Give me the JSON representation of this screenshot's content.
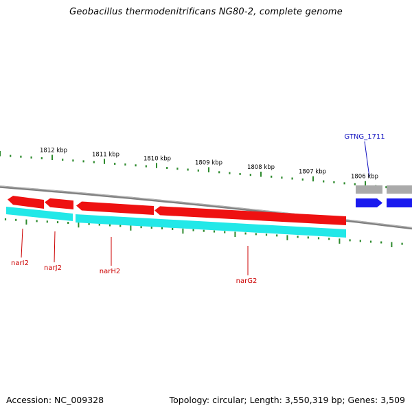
{
  "title": "Geobacillus thermodenitrificans NG80-2, complete genome",
  "footer": {
    "accession": "Accession: NC_009328",
    "topology": "Topology: circular; Length: 3,550,319 bp; Genes: 3,509"
  },
  "colors": {
    "tick": "#2d8a2d",
    "backbone": "#808080",
    "forward_gene": "#ee1111",
    "forward_gene_shadow": "#22e8e8",
    "reverse_gene": "#1a1aee",
    "reverse_gene_shadow": "#aaaaaa",
    "label_red": "#cc0000",
    "label_blue": "#1010c0"
  },
  "scale": {
    "upper_labels": [
      "1812 kbp",
      "1811 kbp",
      "1810 kbp",
      "1809 kbp",
      "1808 kbp",
      "1807 kbp",
      "1806 kbp"
    ]
  },
  "genes": [
    {
      "name": "narI2",
      "strand": "forward"
    },
    {
      "name": "narJ2",
      "strand": "forward"
    },
    {
      "name": "narH2",
      "strand": "forward"
    },
    {
      "name": "narG2",
      "strand": "forward"
    },
    {
      "name": "GTNG_1711",
      "strand": "reverse"
    }
  ]
}
